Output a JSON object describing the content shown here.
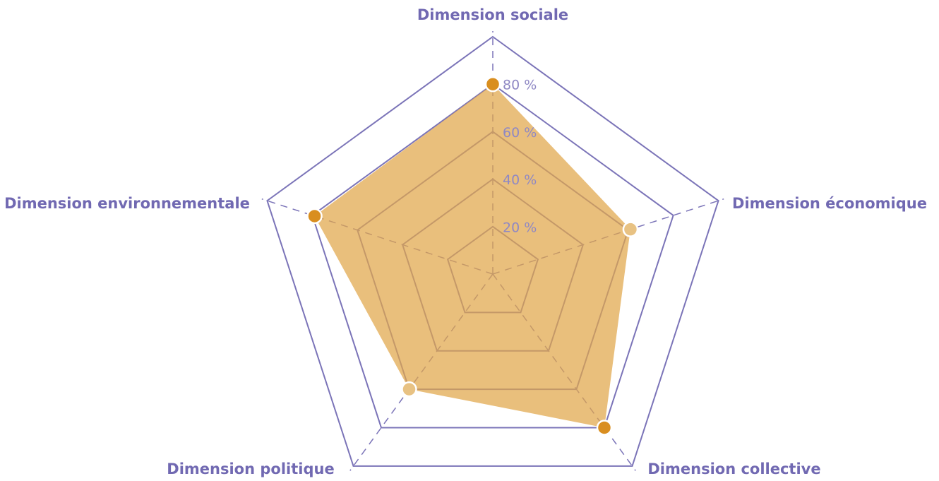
{
  "chart_data": {
    "type": "radar",
    "categories": [
      "Dimension sociale",
      "Dimension économique",
      "Dimension collective",
      "Dimension politique",
      "Dimension environnementale"
    ],
    "values": [
      80,
      61,
      80,
      60,
      79
    ],
    "color": "#e0a64a",
    "point_colors": [
      "#d98e1f",
      "#e8c283",
      "#d98e1f",
      "#e8c283",
      "#d98e1f"
    ],
    "ylim": [
      0,
      100
    ],
    "yticks": [
      {
        "value": 20,
        "label": "20 %"
      },
      {
        "value": 40,
        "label": "40 %"
      },
      {
        "value": 60,
        "label": "60 %"
      },
      {
        "value": 80,
        "label": "80 %"
      }
    ],
    "grid": true
  }
}
